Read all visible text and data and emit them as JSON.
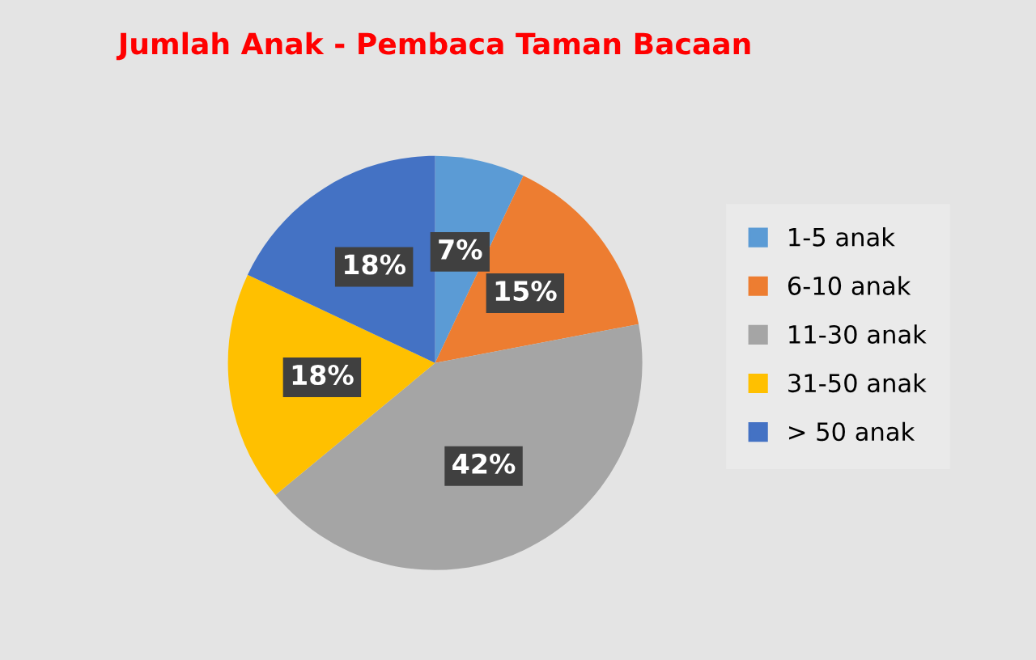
{
  "chart_data": {
    "type": "pie",
    "title": "Jumlah Anak - Pembaca Taman Bacaan",
    "categories": [
      "1-5 anak",
      "6-10 anak",
      "11-30 anak",
      "31-50 anak",
      "> 50 anak"
    ],
    "values": [
      7,
      15,
      42,
      18,
      18
    ],
    "colors": [
      "#5b9bd5",
      "#ed7d31",
      "#a5a5a5",
      "#ffc000",
      "#4472c4"
    ],
    "value_labels": [
      "7%",
      "15%",
      "42%",
      "18%",
      "18%"
    ],
    "legend": "right"
  }
}
